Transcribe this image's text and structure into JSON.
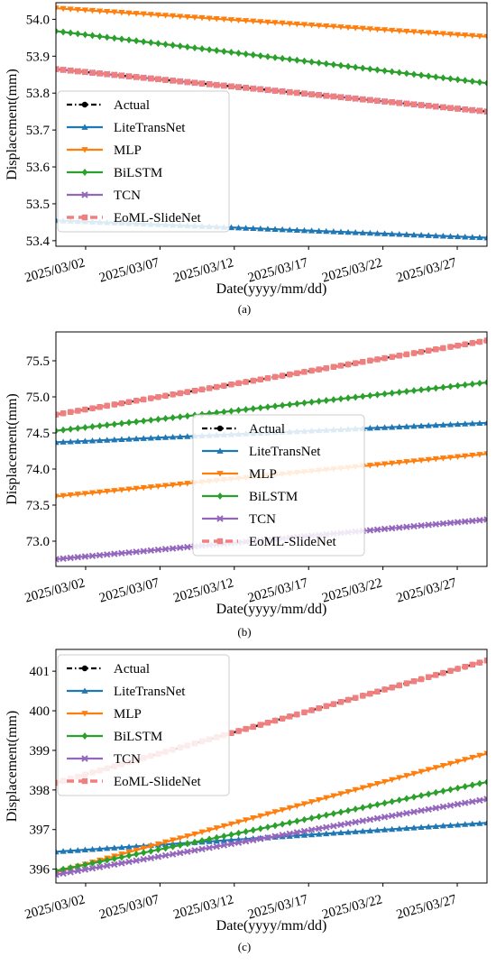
{
  "chart_data": [
    {
      "type": "line",
      "panel_label": "(a)",
      "xlabel": "Date(yyyy/mm/dd)",
      "ylabel": "Displacement(mm)",
      "x_start": "2025/02/28",
      "x_end": "2025/03/29",
      "x_ticks": [
        "2025/03/02",
        "2025/03/07",
        "2025/03/12",
        "2025/03/17",
        "2025/03/22",
        "2025/03/27"
      ],
      "y_ticks": [
        "53.4",
        "53.5",
        "53.6",
        "53.7",
        "53.8",
        "53.9",
        "54.0"
      ],
      "ylim": [
        53.385,
        54.045
      ],
      "grid": false,
      "legend_position": "center-left",
      "series": [
        {
          "name": "Actual",
          "color": "#000000",
          "marker": "circle",
          "values": [
            53.865,
            53.75
          ]
        },
        {
          "name": "LiteTransNet",
          "color": "#1f77b4",
          "marker": "triangle-up",
          "values": [
            53.455,
            53.408
          ]
        },
        {
          "name": "MLP",
          "color": "#ff7f0e",
          "marker": "triangle-down",
          "values": [
            54.03,
            53.953
          ]
        },
        {
          "name": "BiLSTM",
          "color": "#2ca02c",
          "marker": "diamond",
          "values": [
            53.968,
            53.827
          ]
        },
        {
          "name": "TCN",
          "color": "#9467bd",
          "marker": "x",
          "values": [
            53.865,
            53.75
          ]
        },
        {
          "name": "EoML-SlideNet",
          "color": "#f08080",
          "marker": "square",
          "values": [
            53.865,
            53.75
          ]
        }
      ]
    },
    {
      "type": "line",
      "panel_label": "(b)",
      "xlabel": "Date(yyyy/mm/dd)",
      "ylabel": "Displacement(mm)",
      "x_start": "2025/02/28",
      "x_end": "2025/03/29",
      "x_ticks": [
        "2025/03/02",
        "2025/03/07",
        "2025/03/12",
        "2025/03/17",
        "2025/03/22",
        "2025/03/27"
      ],
      "y_ticks": [
        "73.0",
        "73.5",
        "74.0",
        "74.5",
        "75.0",
        "75.5"
      ],
      "ylim": [
        72.65,
        75.9
      ],
      "grid": false,
      "legend_position": "center",
      "series": [
        {
          "name": "Actual",
          "color": "#000000",
          "marker": "circle",
          "values": [
            74.755,
            75.78
          ]
        },
        {
          "name": "LiteTransNet",
          "color": "#1f77b4",
          "marker": "triangle-up",
          "values": [
            74.37,
            74.64
          ]
        },
        {
          "name": "MLP",
          "color": "#ff7f0e",
          "marker": "triangle-down",
          "values": [
            73.62,
            74.21
          ]
        },
        {
          "name": "BiLSTM",
          "color": "#2ca02c",
          "marker": "diamond",
          "values": [
            74.53,
            75.2
          ]
        },
        {
          "name": "TCN",
          "color": "#9467bd",
          "marker": "x",
          "values": [
            72.75,
            73.3
          ]
        },
        {
          "name": "EoML-SlideNet",
          "color": "#f08080",
          "marker": "square",
          "values": [
            74.755,
            75.78
          ]
        }
      ]
    },
    {
      "type": "line",
      "panel_label": "(c)",
      "xlabel": "Date(yyyy/mm/dd)",
      "ylabel": "Displacement(mm)",
      "x_start": "2025/02/28",
      "x_end": "2025/03/29",
      "x_ticks": [
        "2025/03/02",
        "2025/03/07",
        "2025/03/12",
        "2025/03/17",
        "2025/03/22",
        "2025/03/27"
      ],
      "y_ticks": [
        "396",
        "397",
        "398",
        "399",
        "400",
        "401"
      ],
      "ylim": [
        395.65,
        401.55
      ],
      "grid": false,
      "legend_position": "upper-left",
      "series": [
        {
          "name": "Actual",
          "color": "#000000",
          "marker": "circle",
          "values": [
            398.18,
            401.27
          ]
        },
        {
          "name": "LiteTransNet",
          "color": "#1f77b4",
          "marker": "triangle-up",
          "values": [
            396.44,
            397.17
          ]
        },
        {
          "name": "MLP",
          "color": "#ff7f0e",
          "marker": "triangle-down",
          "values": [
            395.92,
            398.92
          ]
        },
        {
          "name": "BiLSTM",
          "color": "#2ca02c",
          "marker": "diamond",
          "values": [
            395.96,
            398.2
          ]
        },
        {
          "name": "TCN",
          "color": "#9467bd",
          "marker": "x",
          "values": [
            395.86,
            397.77
          ]
        },
        {
          "name": "EoML-SlideNet",
          "color": "#f08080",
          "marker": "square",
          "values": [
            398.18,
            401.27
          ]
        }
      ]
    }
  ]
}
